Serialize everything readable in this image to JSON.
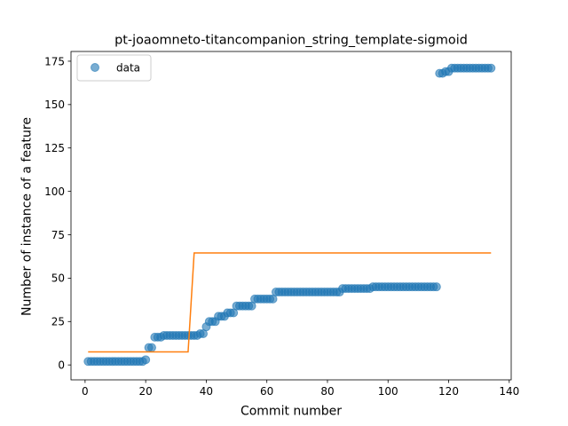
{
  "chart_data": {
    "type": "scatter",
    "title": "pt-joaomneto-titancompanion_string_template-sigmoid",
    "xlabel": "Commit number",
    "ylabel": "Number of instance of a feature",
    "xlim": [
      -4.65,
      140.65
    ],
    "ylim": [
      -8.6,
      180.6
    ],
    "xticks": [
      0,
      20,
      40,
      60,
      80,
      100,
      120,
      140
    ],
    "yticks": [
      0,
      25,
      50,
      75,
      100,
      125,
      150,
      175
    ],
    "grid": false,
    "legend": {
      "entries": [
        "data"
      ],
      "placement": "upper-left"
    },
    "series": [
      {
        "name": "data",
        "kind": "scatter",
        "color": "#1f77b4",
        "x": [
          1,
          2,
          3,
          4,
          5,
          6,
          7,
          8,
          9,
          10,
          11,
          12,
          13,
          14,
          15,
          16,
          17,
          18,
          19,
          20,
          21,
          22,
          23,
          24,
          25,
          26,
          27,
          28,
          29,
          30,
          31,
          32,
          33,
          34,
          35,
          36,
          37,
          38,
          39,
          40,
          41,
          42,
          43,
          44,
          45,
          46,
          47,
          48,
          49,
          50,
          51,
          52,
          53,
          54,
          55,
          56,
          57,
          58,
          59,
          60,
          61,
          62,
          63,
          64,
          65,
          66,
          67,
          68,
          69,
          70,
          71,
          72,
          73,
          74,
          75,
          76,
          77,
          78,
          79,
          80,
          81,
          82,
          83,
          84,
          85,
          86,
          87,
          88,
          89,
          90,
          91,
          92,
          93,
          94,
          95,
          96,
          97,
          98,
          99,
          100,
          101,
          102,
          103,
          104,
          105,
          106,
          107,
          108,
          109,
          110,
          111,
          112,
          113,
          114,
          115,
          116,
          117,
          118,
          119,
          120,
          121,
          122,
          123,
          124,
          125,
          126,
          127,
          128,
          129,
          130,
          131,
          132,
          133,
          134
        ],
        "y": [
          2,
          2,
          2,
          2,
          2,
          2,
          2,
          2,
          2,
          2,
          2,
          2,
          2,
          2,
          2,
          2,
          2,
          2,
          2,
          3,
          10,
          10,
          16,
          16,
          16,
          17,
          17,
          17,
          17,
          17,
          17,
          17,
          17,
          17,
          17,
          17,
          17,
          18,
          18,
          22,
          25,
          25,
          25,
          28,
          28,
          28,
          30,
          30,
          30,
          34,
          34,
          34,
          34,
          34,
          34,
          38,
          38,
          38,
          38,
          38,
          38,
          38,
          42,
          42,
          42,
          42,
          42,
          42,
          42,
          42,
          42,
          42,
          42,
          42,
          42,
          42,
          42,
          42,
          42,
          42,
          42,
          42,
          42,
          42,
          44,
          44,
          44,
          44,
          44,
          44,
          44,
          44,
          44,
          44,
          45,
          45,
          45,
          45,
          45,
          45,
          45,
          45,
          45,
          45,
          45,
          45,
          45,
          45,
          45,
          45,
          45,
          45,
          45,
          45,
          45,
          45,
          168,
          168,
          169,
          169,
          171,
          171,
          171,
          171,
          171,
          171,
          171,
          171,
          171,
          171,
          171,
          171,
          171,
          171
        ]
      },
      {
        "name": "",
        "kind": "line",
        "color": "#ff7f0e",
        "x": [
          1,
          34,
          35,
          36,
          134
        ],
        "y": [
          7.5,
          7.5,
          36,
          64.5,
          64.5
        ]
      }
    ]
  }
}
